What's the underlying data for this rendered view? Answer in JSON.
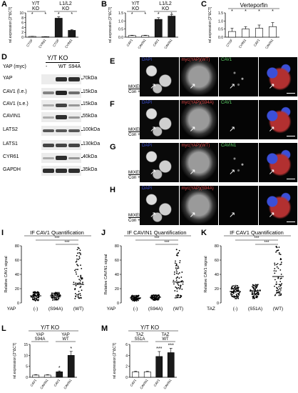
{
  "panels": {
    "A": {
      "label": "A",
      "title_lines": [
        "Y/T",
        "KO"
      ],
      "title2_lines": [
        "L1/L2",
        "KO"
      ],
      "ylabel": "rel.expression [2^ΔCT]",
      "ytick_labels": [
        "10",
        "8",
        "6",
        "4",
        "2",
        "0"
      ],
      "stars": [
        "*",
        "*",
        "*",
        "*"
      ],
      "chart_data": {
        "type": "bar",
        "categories": [
          "CTGF",
          "CYR61",
          "CTGF",
          "CYR61"
        ],
        "values": [
          0.3,
          0.2,
          7.8,
          2.8
        ],
        "errors": [
          0.05,
          0.05,
          0.6,
          0.3
        ],
        "ylim": [
          0,
          10
        ]
      }
    },
    "B": {
      "label": "B",
      "title_lines": [
        "Y/T",
        "KO"
      ],
      "title2_lines": [
        "L1/L2",
        "KO"
      ],
      "ylabel": "rel.expression [2^ΔCT]",
      "ytick_labels": [
        "1.5",
        "1.0",
        "0.5",
        "0.0"
      ],
      "stars": [
        "*",
        "*",
        "*",
        "*"
      ],
      "chart_data": {
        "type": "bar",
        "categories": [
          "CAV1",
          "CAVIN1",
          "CAV1",
          "CAVIN1"
        ],
        "values": [
          0.1,
          0.1,
          1.1,
          1.3
        ],
        "errors": [
          0.02,
          0.02,
          0.1,
          0.1
        ],
        "ylim": [
          0,
          1.5
        ]
      }
    },
    "C": {
      "label": "C",
      "title": "Verteporfin",
      "ylabel": "rel.expression [2^ΔCT]",
      "ytick_labels": [
        "1.5",
        "1.0",
        "0.5",
        "0.0"
      ],
      "stars": [
        "*",
        "*",
        "*",
        "*"
      ],
      "chart_data": {
        "type": "bar",
        "categories": [
          "CTGF",
          "CYR61",
          "CAV1",
          "CAVIN1"
        ],
        "values": [
          0.35,
          0.5,
          0.55,
          0.65
        ],
        "errors": [
          0.2,
          0.15,
          0.2,
          0.25
        ],
        "ylim": [
          0,
          1.5
        ]
      }
    },
    "D": {
      "label": "D",
      "title": "Y/T KO",
      "yap_label": "YAP (myc)",
      "lanes": [
        "-",
        "WT",
        "S94A"
      ],
      "rows": [
        {
          "name": "YAP",
          "kda": "70kDa"
        },
        {
          "name": "CAV1 (l.e.)",
          "kda": "15kDa"
        },
        {
          "name": "CAV1 (s.e.)",
          "kda": "15kDa"
        },
        {
          "name": "CAVIN1",
          "kda": "55kDa"
        },
        {
          "name": "LATS2",
          "kda": "100kDa"
        },
        {
          "name": "LATS1",
          "kda": "130kDa"
        },
        {
          "name": "CYR61",
          "kda": "40kDa"
        },
        {
          "name": "GAPDH",
          "kda": "35kDa"
        }
      ]
    },
    "E": {
      "label": "E",
      "row_lines": [
        "MIXED Y/T KO",
        "Con + YAP (WT)"
      ],
      "ch1": "DAPI",
      "ch2": "myc(YAP)(WT)",
      "ch3": "CAV1"
    },
    "F": {
      "label": "F",
      "row_lines": [
        "MIXED Y/T KO",
        "Con + YAP (S94A)"
      ],
      "ch1": "DAPI",
      "ch2": "myc(YAP)(S94A)",
      "ch3": "CAV1"
    },
    "G": {
      "label": "G",
      "row_lines": [
        "MIXED Y/T KO",
        "Con + YAP (WT)"
      ],
      "ch1": "DAPI",
      "ch2": "myc(YAP)(WT)",
      "ch3": "CAVIN1"
    },
    "H": {
      "label": "H",
      "row_lines": [
        "MIXED Y/T KO",
        "Con + YAP (S94A)"
      ],
      "ch1": "DAPI",
      "ch2": "myc(YAP)(S94A)",
      "ch3": ""
    },
    "I": {
      "label": "I",
      "title": "IF CAV1 Quantification",
      "ylabel": "Relative CAV1 signal",
      "ytick_labels": [
        "80",
        "60",
        "40",
        "20",
        "0"
      ],
      "group_prefix": "YAP",
      "groups": [
        "(-)",
        "(S94A)",
        "(WT)"
      ],
      "sig": [
        "***",
        "***"
      ],
      "chart_data": {
        "type": "scatter",
        "categories": [
          "(-)",
          "(S94A)",
          "(WT)"
        ],
        "means": [
          10,
          10,
          26
        ],
        "ranges": [
          [
            3,
            18
          ],
          [
            4,
            18
          ],
          [
            6,
            80
          ]
        ],
        "ylim": [
          0,
          80
        ]
      }
    },
    "J": {
      "label": "J",
      "title": "IF CAVIN1 Quantification",
      "ylabel": "Relative CAVIN1 signal",
      "ytick_labels": [
        "80",
        "60",
        "40",
        "20",
        "0"
      ],
      "group_prefix": "YAP",
      "groups": [
        "(-)",
        "(S94A)",
        "(WT)"
      ],
      "sig": [
        "***",
        "***"
      ],
      "chart_data": {
        "type": "scatter",
        "categories": [
          "(-)",
          "(S94A)",
          "(WT)"
        ],
        "means": [
          8,
          9,
          33
        ],
        "ranges": [
          [
            3,
            14
          ],
          [
            4,
            15
          ],
          [
            8,
            85
          ]
        ],
        "ylim": [
          0,
          90
        ]
      }
    },
    "K": {
      "label": "K",
      "title": "IF CAV1 Quantification",
      "ylabel": "Relative CAV1 signal",
      "ytick_labels": [
        "80",
        "60",
        "40",
        "20",
        "0"
      ],
      "group_prefix": "TAZ",
      "groups": [
        "(-)",
        "(S51A)",
        "(WT)"
      ],
      "sig": [
        "***",
        "***"
      ],
      "chart_data": {
        "type": "scatter",
        "categories": [
          "(-)",
          "(S51A)",
          "(WT)"
        ],
        "means": [
          16,
          17,
          37
        ],
        "ranges": [
          [
            5,
            30
          ],
          [
            6,
            32
          ],
          [
            10,
            80
          ]
        ],
        "ylim": [
          0,
          80
        ]
      }
    },
    "L": {
      "label": "L",
      "title": "Y/T KO",
      "g1_lines": [
        "YAP",
        "S94A"
      ],
      "g2_lines": [
        "YAP",
        "WT"
      ],
      "ylabel": "rel.expression [2^ΔCT]",
      "ytick_labels": [
        "15",
        "10",
        "5",
        "0"
      ],
      "stars": [
        "*",
        "*"
      ],
      "chart_data": {
        "type": "bar",
        "categories": [
          "CAV1",
          "CAVIN1",
          "CAV1",
          "CAVIN1"
        ],
        "values": [
          1,
          1,
          2.5,
          10
        ],
        "errors": [
          0.2,
          0.2,
          0.4,
          1.8
        ],
        "ylim": [
          0,
          15
        ]
      }
    },
    "M": {
      "label": "M",
      "title": "Y/T KO",
      "g1_lines": [
        "TAZ",
        "S51A"
      ],
      "g2_lines": [
        "TAZ",
        "WT"
      ],
      "ylabel": "rel.expression [2^ΔCT]",
      "ytick_labels": [
        "6",
        "4",
        "2",
        "0"
      ],
      "stars": [
        "***",
        "***"
      ],
      "chart_data": {
        "type": "bar",
        "categories": [
          "CAV1",
          "CAVIN1",
          "CAV1",
          "CAVIN1"
        ],
        "values": [
          1,
          1,
          3.8,
          4.5
        ],
        "errors": [
          0.1,
          0.1,
          0.9,
          0.8
        ],
        "ylim": [
          0,
          6
        ]
      }
    }
  },
  "colors": {
    "bar_dark": "#1a1a1a",
    "bar_white": "#ffffff",
    "dapi": "#3b4fd8",
    "myc": "#e04848",
    "cav": "#5fd86a"
  }
}
